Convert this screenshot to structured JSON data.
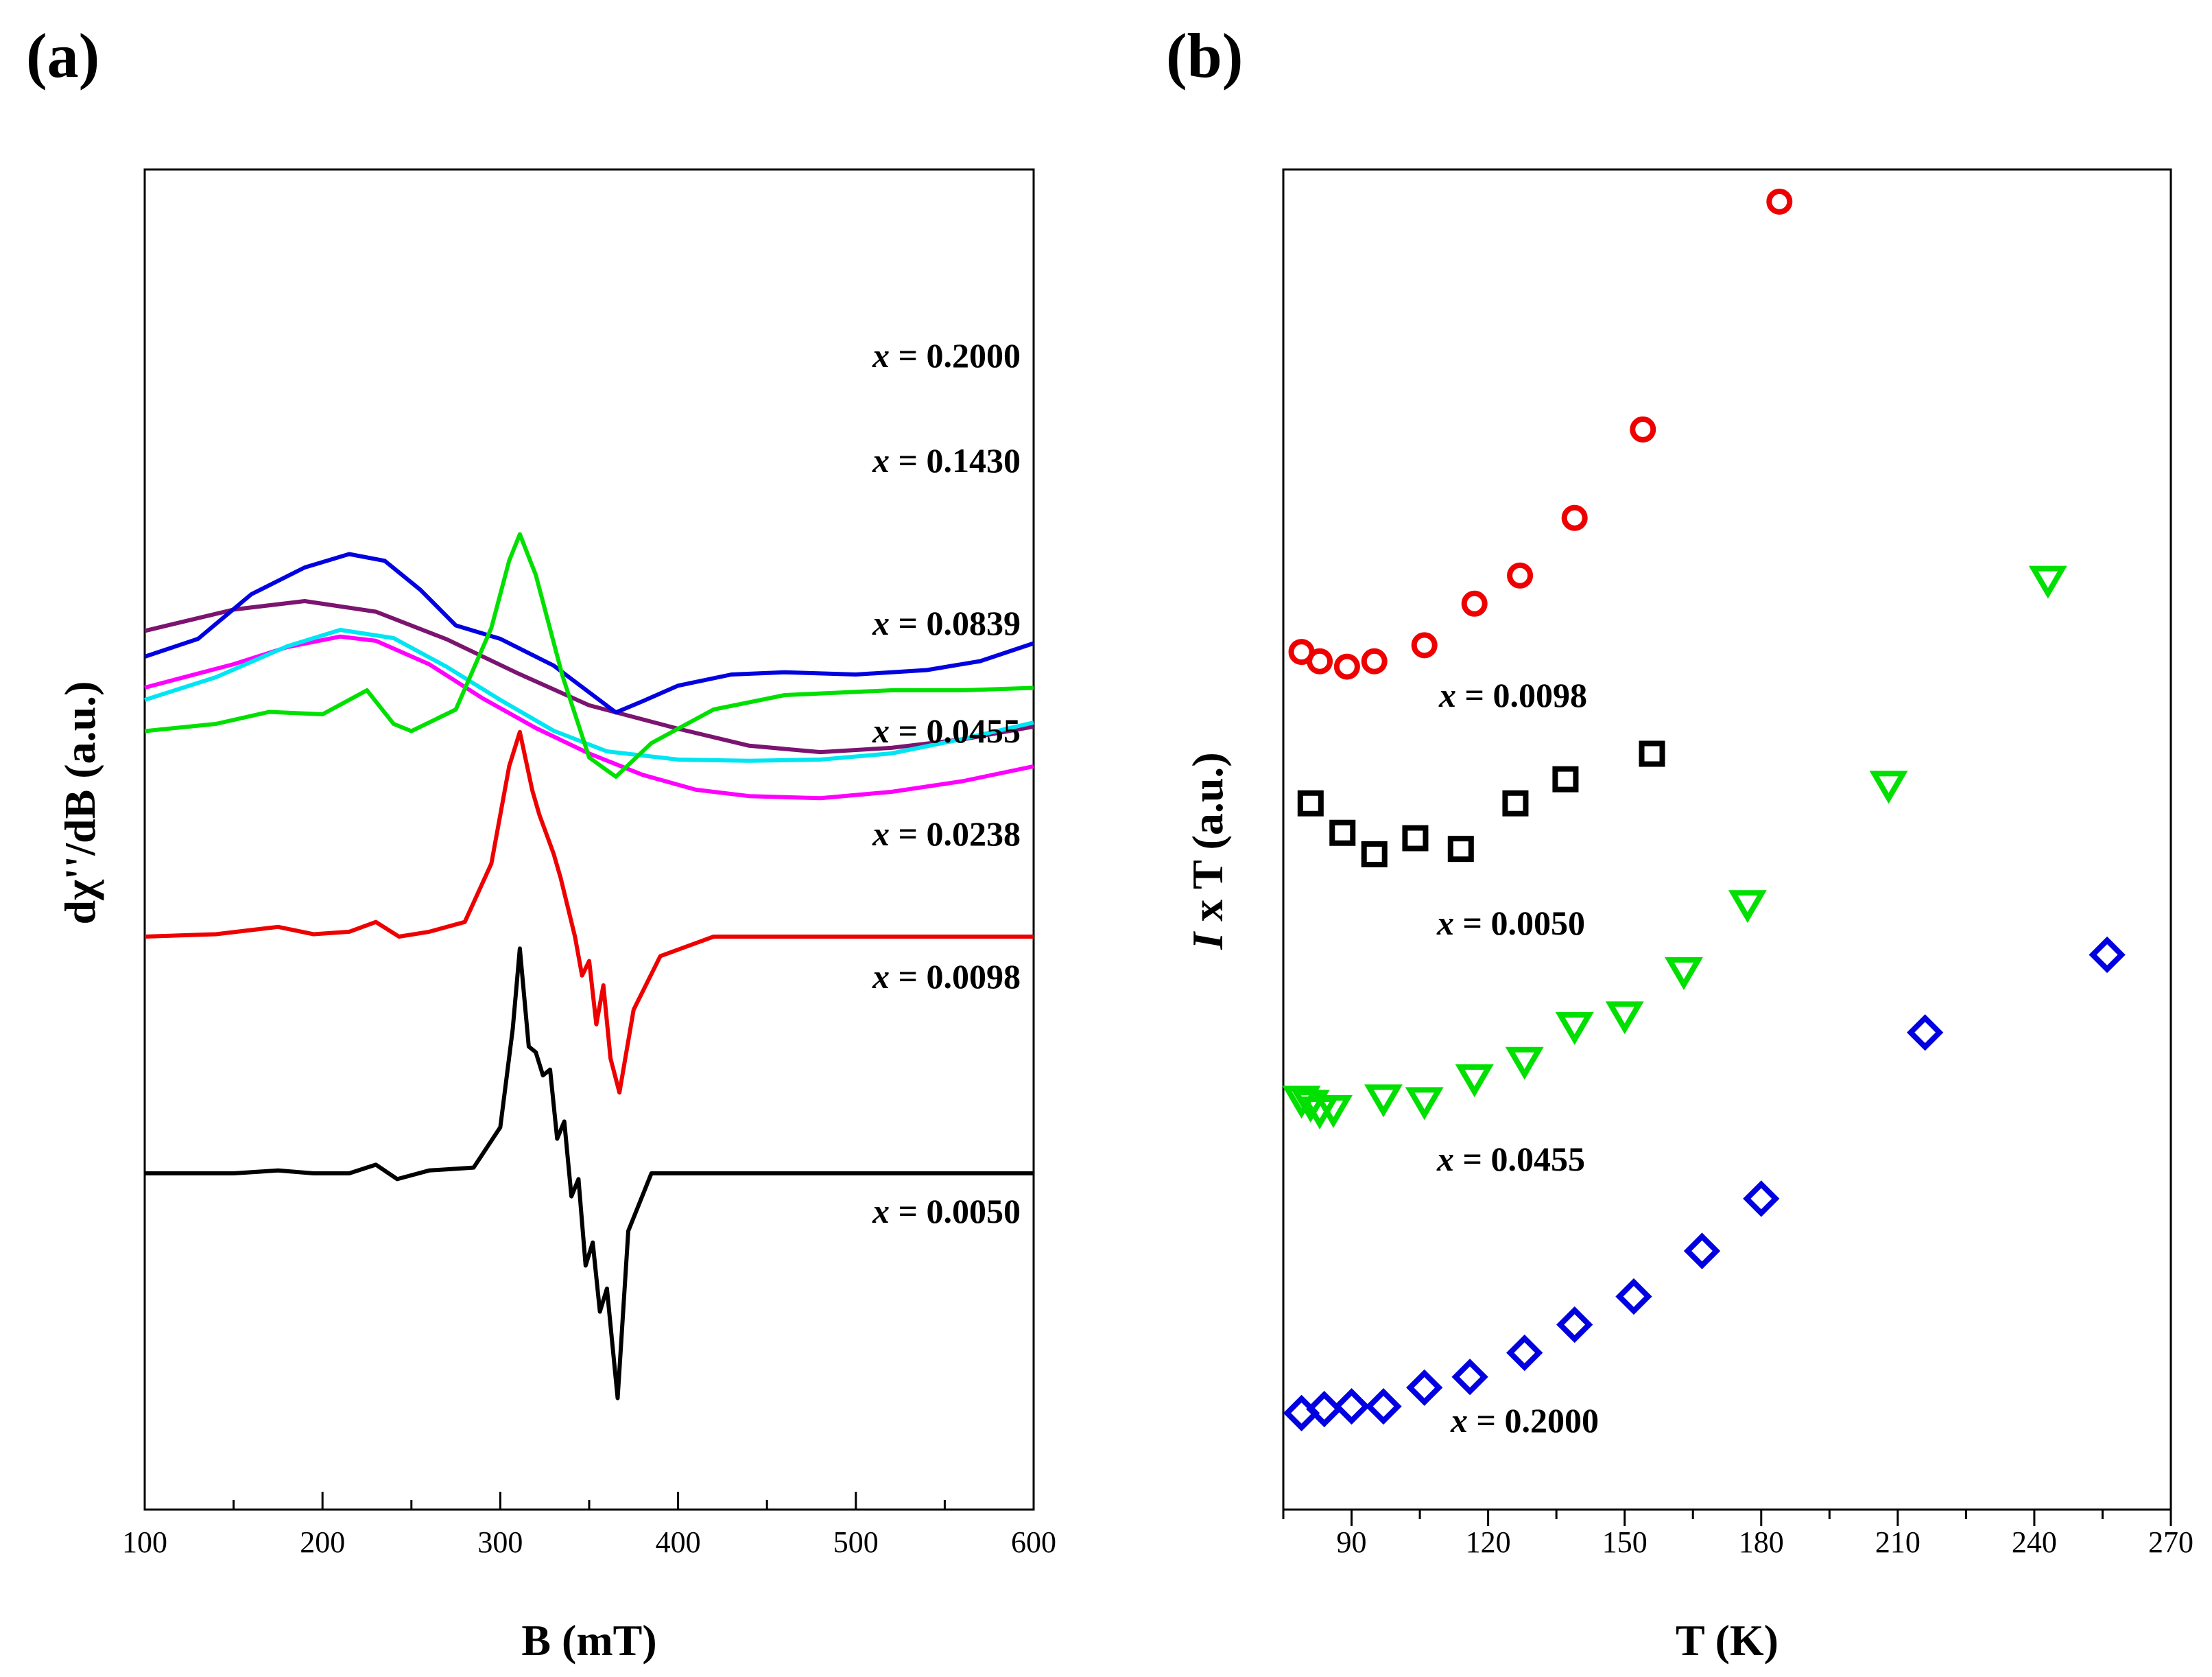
{
  "figure": {
    "panel_a_letter": "(a)",
    "panel_b_letter": "(b)"
  },
  "chart_data": [
    {
      "type": "line",
      "panel": "(a)",
      "title": "",
      "xlabel": "B (mT)",
      "ylabel": "dχ''/dB (a.u.)",
      "xlim": [
        100,
        600
      ],
      "xticks": [
        100,
        200,
        300,
        400,
        500,
        600
      ],
      "y_ticks_labeled": false,
      "legend": "none (curve labels placed at right end of each curve)",
      "grid": false,
      "series": [
        {
          "label_var": "x",
          "label_value": " = 0.2000",
          "color": "#7b1470",
          "x": [
            100,
            150,
            190,
            230,
            270,
            310,
            350,
            400,
            440,
            480,
            520,
            560,
            600
          ],
          "y": [
            0.88,
            0.93,
            0.95,
            0.925,
            0.86,
            0.78,
            0.705,
            0.65,
            0.61,
            0.595,
            0.605,
            0.625,
            0.655
          ]
        },
        {
          "label_var": "x",
          "label_value": " = 0.1430",
          "color": "#ff00ff",
          "x": [
            100,
            150,
            180,
            210,
            230,
            260,
            290,
            320,
            350,
            380,
            410,
            440,
            480,
            520,
            560,
            600
          ],
          "y": [
            0.795,
            0.85,
            0.89,
            0.915,
            0.905,
            0.85,
            0.77,
            0.7,
            0.64,
            0.59,
            0.555,
            0.54,
            0.535,
            0.55,
            0.575,
            0.61
          ]
        },
        {
          "label_var": "x",
          "label_value": " = 0.0839",
          "color": "#00e5f2",
          "x": [
            100,
            140,
            180,
            210,
            240,
            270,
            300,
            330,
            360,
            400,
            440,
            480,
            520,
            560,
            600
          ],
          "y": [
            0.6,
            0.655,
            0.73,
            0.77,
            0.75,
            0.68,
            0.6,
            0.525,
            0.475,
            0.455,
            0.452,
            0.455,
            0.47,
            0.505,
            0.545
          ]
        },
        {
          "label_var": "x",
          "label_value": " = 0.0455",
          "color": "#0000e0",
          "x": [
            100,
            130,
            160,
            190,
            215,
            235,
            255,
            275,
            300,
            330,
            350,
            365,
            380,
            400,
            430,
            460,
            500,
            540,
            570,
            600
          ],
          "y": [
            0.42,
            0.46,
            0.56,
            0.62,
            0.65,
            0.635,
            0.57,
            0.49,
            0.46,
            0.4,
            0.34,
            0.295,
            0.32,
            0.355,
            0.38,
            0.385,
            0.38,
            0.39,
            0.41,
            0.45
          ]
        },
        {
          "label_var": "x",
          "label_value": " = 0.0238",
          "color": "#00e000",
          "x": [
            100,
            140,
            170,
            200,
            225,
            240,
            250,
            275,
            295,
            305,
            311,
            320,
            335,
            350,
            365,
            385,
            420,
            460,
            520,
            560,
            600
          ],
          "y": [
            0.235,
            0.25,
            0.275,
            0.27,
            0.32,
            0.25,
            0.235,
            0.28,
            0.45,
            0.59,
            0.645,
            0.56,
            0.35,
            0.18,
            0.14,
            0.21,
            0.28,
            0.31,
            0.32,
            0.32,
            0.325
          ]
        },
        {
          "label_var": "x",
          "label_value": " = 0.0098",
          "color": "#ee0000",
          "x": [
            100,
            140,
            175,
            195,
            215,
            230,
            243,
            260,
            280,
            295,
            305,
            311,
            318,
            322,
            326,
            330,
            334,
            338,
            342,
            346,
            350,
            354,
            358,
            362,
            367,
            375,
            390,
            420,
            460,
            520,
            600
          ],
          "y": [
            0.0,
            0.005,
            0.02,
            0.005,
            0.01,
            0.03,
            0.0,
            0.01,
            0.03,
            0.15,
            0.35,
            0.42,
            0.3,
            0.25,
            0.21,
            0.17,
            0.12,
            0.06,
            0.0,
            -0.08,
            -0.05,
            -0.18,
            -0.1,
            -0.25,
            -0.32,
            -0.15,
            -0.04,
            0.0,
            0.0,
            0.0,
            0.0
          ]
        },
        {
          "label_var": "x",
          "label_value": " = 0.0050",
          "color": "#000000",
          "x": [
            100,
            150,
            175,
            195,
            215,
            230,
            242,
            260,
            285,
            300,
            307,
            311,
            316,
            320,
            324,
            328,
            332,
            336,
            340,
            344,
            348,
            352,
            356,
            360,
            366,
            372,
            385,
            420,
            480,
            600
          ],
          "y": [
            0.0,
            0.0,
            0.005,
            0.0,
            0.0,
            0.015,
            -0.01,
            0.005,
            0.01,
            0.08,
            0.25,
            0.39,
            0.22,
            0.21,
            0.17,
            0.18,
            0.06,
            0.09,
            -0.04,
            -0.01,
            -0.16,
            -0.12,
            -0.24,
            -0.2,
            -0.39,
            -0.1,
            0.0,
            0.0,
            0.0,
            0.0
          ]
        }
      ]
    },
    {
      "type": "scatter",
      "panel": "(b)",
      "title": "",
      "xlabel": "T (K)",
      "ylabel_italic": "I",
      "ylabel_rest": " x T (a.u.)",
      "xlim": [
        75,
        270
      ],
      "xticks": [
        90,
        120,
        150,
        180,
        210,
        240,
        270
      ],
      "y_ticks_labeled": false,
      "legend": "none (series labels placed beside each point set)",
      "grid": false,
      "series": [
        {
          "label_var": "x",
          "label_value": " = 0.0098",
          "marker": "circle",
          "color": "#ee0000",
          "x": [
            79,
            83,
            89,
            95,
            106,
            117,
            127,
            139,
            154,
            184
          ],
          "y": [
            0.64,
            0.633,
            0.629,
            0.633,
            0.645,
            0.676,
            0.697,
            0.74,
            0.806,
            0.976
          ]
        },
        {
          "label_var": "x",
          "label_value": " = 0.0050",
          "marker": "square",
          "color": "#000000",
          "x": [
            81,
            88,
            95,
            104,
            114,
            126,
            137,
            156
          ],
          "y": [
            0.527,
            0.505,
            0.489,
            0.501,
            0.493,
            0.527,
            0.545,
            0.564
          ]
        },
        {
          "label_var": "x",
          "label_value": " = 0.0455",
          "marker": "triangle-down",
          "color": "#00e000",
          "x": [
            79,
            81,
            83,
            86,
            97,
            106,
            117,
            128,
            139,
            150,
            163,
            177,
            208,
            243
          ],
          "y": [
            0.306,
            0.303,
            0.298,
            0.299,
            0.307,
            0.305,
            0.322,
            0.335,
            0.361,
            0.369,
            0.402,
            0.452,
            0.541,
            0.694
          ]
        },
        {
          "label_var": "x",
          "label_value": " = 0.2000",
          "marker": "diamond",
          "color": "#0000e0",
          "x": [
            79,
            84,
            90,
            97,
            106,
            116,
            128,
            139,
            152,
            167,
            180,
            216,
            256
          ],
          "y": [
            0.072,
            0.075,
            0.077,
            0.077,
            0.091,
            0.099,
            0.117,
            0.138,
            0.159,
            0.193,
            0.232,
            0.356,
            0.414
          ]
        }
      ]
    }
  ]
}
